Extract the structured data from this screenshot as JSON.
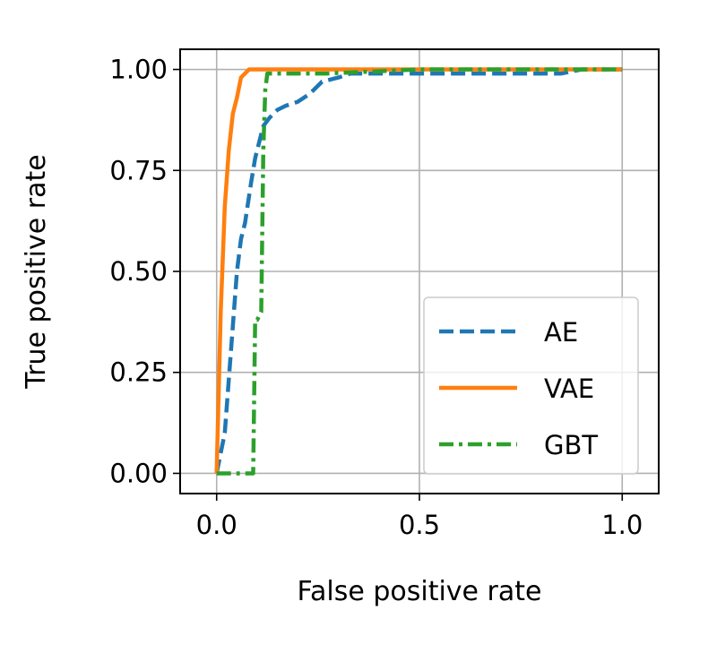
{
  "chart_data": {
    "type": "line",
    "xlabel": "False positive rate",
    "ylabel": "True positive rate",
    "xlim": [
      -0.09,
      1.09
    ],
    "ylim": [
      -0.05,
      1.05
    ],
    "xticks": [
      0.0,
      0.5,
      1.0
    ],
    "xtick_labels": [
      "0.0",
      "0.5",
      "1.0"
    ],
    "yticks": [
      0.0,
      0.25,
      0.5,
      0.75,
      1.0
    ],
    "ytick_labels": [
      "0.00",
      "0.25",
      "0.50",
      "0.75",
      "1.00"
    ],
    "grid": true,
    "legend_position": "lower-right",
    "series": [
      {
        "name": "AE",
        "color": "#1f77b4",
        "style": "dashed",
        "x": [
          0.0,
          0.02,
          0.035,
          0.05,
          0.06,
          0.07,
          0.085,
          0.095,
          0.105,
          0.115,
          0.13,
          0.15,
          0.17,
          0.2,
          0.23,
          0.26,
          0.3,
          0.33,
          0.4,
          0.6,
          0.85,
          0.9,
          1.0
        ],
        "y": [
          0.0,
          0.1,
          0.3,
          0.5,
          0.58,
          0.62,
          0.72,
          0.78,
          0.82,
          0.86,
          0.88,
          0.9,
          0.91,
          0.92,
          0.94,
          0.97,
          0.98,
          0.99,
          0.99,
          0.99,
          0.99,
          1.0,
          1.0
        ]
      },
      {
        "name": "VAE",
        "color": "#ff7f0e",
        "style": "solid",
        "x": [
          0.0,
          0.01,
          0.02,
          0.03,
          0.04,
          0.05,
          0.06,
          0.08,
          0.1,
          0.3,
          0.6,
          1.0
        ],
        "y": [
          0.0,
          0.4,
          0.66,
          0.8,
          0.89,
          0.93,
          0.98,
          1.0,
          1.0,
          1.0,
          1.0,
          1.0
        ],
        "extra": null
      },
      {
        "name": "GBT",
        "color": "#2ca02c",
        "style": "dashdot",
        "x": [
          0.0,
          0.09,
          0.095,
          0.1,
          0.11,
          0.115,
          0.12,
          0.125,
          0.13,
          0.15,
          0.2,
          0.27,
          0.5,
          1.0
        ],
        "y": [
          0.0,
          0.0,
          0.38,
          0.38,
          0.4,
          0.8,
          0.95,
          0.99,
          0.99,
          0.99,
          0.99,
          0.99,
          1.0,
          1.0
        ]
      }
    ]
  }
}
